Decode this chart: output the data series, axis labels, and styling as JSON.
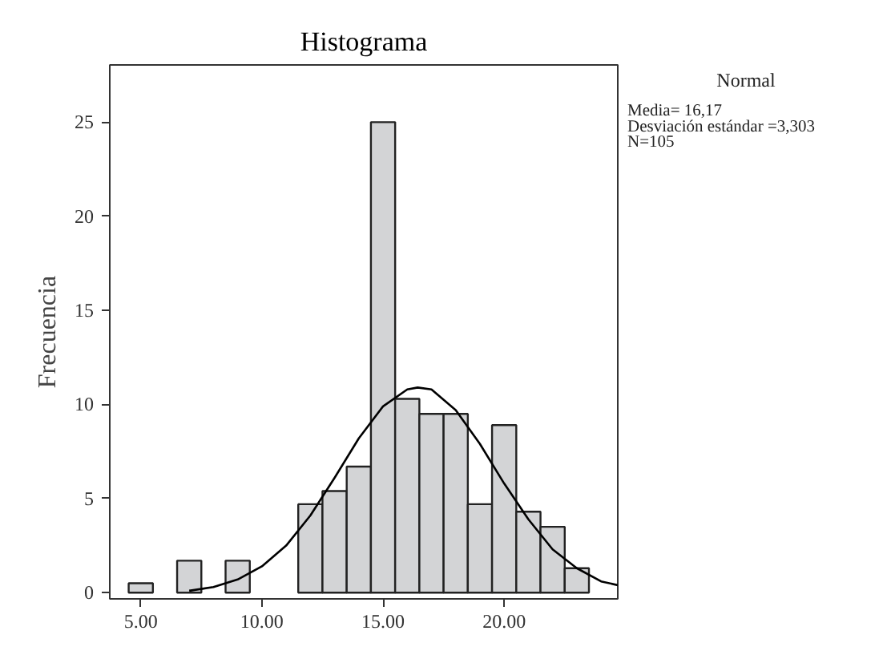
{
  "chart_data": {
    "type": "histogram",
    "title": "Histograma",
    "ylabel": "Frecuencia",
    "bins": [
      4.5,
      5.5,
      6.5,
      7.5,
      8.5,
      9.5,
      10.5,
      11.5,
      12.5,
      13.5,
      14.5,
      15.5,
      16.5,
      17.5,
      18.5,
      19.5,
      20.5,
      21.5,
      22.5,
      23.5
    ],
    "values": [
      0.5,
      0,
      1.7,
      0,
      1.7,
      0,
      0,
      4.7,
      5.4,
      6.7,
      25,
      10.3,
      9.5,
      9.5,
      4.7,
      8.9,
      4.3,
      3.5,
      1.3
    ],
    "color": "#d3d4d6",
    "series": [
      {
        "type": "line",
        "color": "#000000",
        "x": [
          7,
          8,
          9,
          10,
          11,
          12,
          13,
          14,
          15,
          16,
          16.43,
          17,
          18,
          19,
          20,
          21,
          22,
          23,
          24,
          24.69
        ],
        "values": [
          0.1,
          0.3,
          0.7,
          1.4,
          2.5,
          4.1,
          6.1,
          8.2,
          9.9,
          10.8,
          10.9,
          10.8,
          9.7,
          7.9,
          5.8,
          3.9,
          2.3,
          1.3,
          0.6,
          0.4
        ]
      }
    ],
    "xlim": [
      3.72,
      24.69
    ],
    "ylim": [
      -0.33,
      28.04
    ],
    "xticks": [
      {
        "value": 5,
        "label": "5.00"
      },
      {
        "value": 10,
        "label": "10.00"
      },
      {
        "value": 15,
        "label": "15.00"
      },
      {
        "value": 20,
        "label": "20.00"
      }
    ],
    "yticks": [
      0,
      5,
      10,
      15,
      20,
      25
    ],
    "grid": false,
    "annotations": [
      "Normal",
      "Media= 16,17",
      "Desviación estándar =3,303",
      "N=105"
    ]
  }
}
